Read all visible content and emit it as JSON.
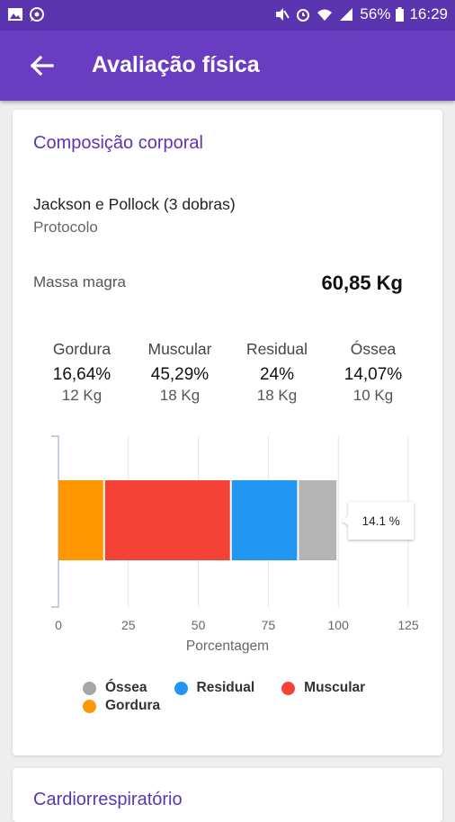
{
  "status_bar": {
    "battery": "56%",
    "time": "16:29"
  },
  "app_bar": {
    "title": "Avaliação física"
  },
  "composition": {
    "title": "Composição corporal",
    "protocol_name": "Jackson e Pollock (3 dobras)",
    "protocol_label": "Protocolo",
    "lean_mass_label": "Massa magra",
    "lean_mass_value": "60,85 Kg",
    "components": [
      {
        "label": "Gordura",
        "percent": "16,64%",
        "kg": "12 Kg"
      },
      {
        "label": "Muscular",
        "percent": "45,29%",
        "kg": "18 Kg"
      },
      {
        "label": "Residual",
        "percent": "24%",
        "kg": "18 Kg"
      },
      {
        "label": "Óssea",
        "percent": "14,07%",
        "kg": "10 Kg"
      }
    ]
  },
  "chart_data": {
    "type": "bar",
    "orientation": "horizontal",
    "stacked": true,
    "xlabel": "Porcentagem",
    "xlim": [
      0,
      125
    ],
    "ticks": [
      "0",
      "25",
      "50",
      "75",
      "100",
      "125"
    ],
    "tick_values": [
      0,
      25,
      50,
      75,
      100,
      125
    ],
    "series": [
      {
        "name": "Gordura",
        "value": 16.64,
        "color": "#ff9800"
      },
      {
        "name": "Muscular",
        "value": 45.29,
        "color": "#f44336"
      },
      {
        "name": "Residual",
        "value": 24,
        "color": "#2196f3"
      },
      {
        "name": "Óssea",
        "value": 14.07,
        "color": "#b4b4b4"
      }
    ],
    "tooltip": "14.1 %",
    "legend": [
      "Óssea",
      "Residual",
      "Muscular",
      "Gordura"
    ],
    "legend_colors": [
      "#a6a6a6",
      "#2196f3",
      "#f44336",
      "#ff9800"
    ],
    "grid": true,
    "legend_position": "bottom"
  },
  "next_section": {
    "title": "Cardiorrespiratório"
  }
}
